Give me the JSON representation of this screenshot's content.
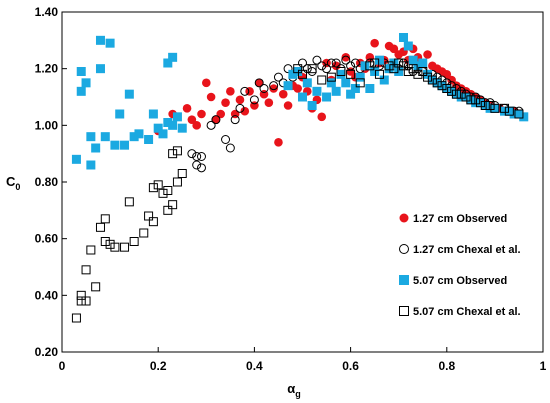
{
  "chart_data": {
    "type": "scatter",
    "xlabel_main": "α",
    "xlabel_sub": "g",
    "ylabel_main": "C",
    "ylabel_sub": "0",
    "xlim": [
      0,
      1
    ],
    "ylim": [
      0.2,
      1.4
    ],
    "xticks": [
      "0",
      "0.2",
      "0.4",
      "0.6",
      "0.8",
      "1"
    ],
    "yticks": [
      "0.20",
      "0.40",
      "0.60",
      "0.80",
      "1.00",
      "1.20",
      "1.40"
    ],
    "grid": false,
    "legend_position": "bottom-right",
    "series": [
      {
        "name": "1.27 cm Observed",
        "marker": "circle-filled",
        "color": "#e8141b",
        "points": [
          [
            0.2,
            0.98
          ],
          [
            0.23,
            1.04
          ],
          [
            0.26,
            1.06
          ],
          [
            0.27,
            1.02
          ],
          [
            0.28,
            1.0
          ],
          [
            0.29,
            1.04
          ],
          [
            0.3,
            1.15
          ],
          [
            0.31,
            1.1
          ],
          [
            0.32,
            1.02
          ],
          [
            0.33,
            1.04
          ],
          [
            0.34,
            1.08
          ],
          [
            0.35,
            1.12
          ],
          [
            0.36,
            1.04
          ],
          [
            0.37,
            1.09
          ],
          [
            0.38,
            1.05
          ],
          [
            0.39,
            1.12
          ],
          [
            0.4,
            1.07
          ],
          [
            0.41,
            1.15
          ],
          [
            0.42,
            1.11
          ],
          [
            0.43,
            1.08
          ],
          [
            0.44,
            1.13
          ],
          [
            0.45,
            0.94
          ],
          [
            0.46,
            1.11
          ],
          [
            0.47,
            1.07
          ],
          [
            0.48,
            1.14
          ],
          [
            0.49,
            1.13
          ],
          [
            0.5,
            1.17
          ],
          [
            0.51,
            1.12
          ],
          [
            0.52,
            1.06
          ],
          [
            0.53,
            1.09
          ],
          [
            0.54,
            1.03
          ],
          [
            0.55,
            1.22
          ],
          [
            0.56,
            1.16
          ],
          [
            0.57,
            1.21
          ],
          [
            0.58,
            1.18
          ],
          [
            0.59,
            1.24
          ],
          [
            0.6,
            1.19
          ],
          [
            0.61,
            1.17
          ],
          [
            0.62,
            1.22
          ],
          [
            0.63,
            1.2
          ],
          [
            0.64,
            1.24
          ],
          [
            0.65,
            1.29
          ],
          [
            0.66,
            1.22
          ],
          [
            0.67,
            1.23
          ],
          [
            0.68,
            1.28
          ],
          [
            0.69,
            1.27
          ],
          [
            0.7,
            1.25
          ],
          [
            0.71,
            1.26
          ],
          [
            0.72,
            1.23
          ],
          [
            0.73,
            1.27
          ],
          [
            0.74,
            1.24
          ],
          [
            0.75,
            1.22
          ],
          [
            0.76,
            1.25
          ],
          [
            0.77,
            1.21
          ],
          [
            0.78,
            1.2
          ],
          [
            0.79,
            1.19
          ],
          [
            0.8,
            1.18
          ],
          [
            0.81,
            1.16
          ],
          [
            0.82,
            1.14
          ],
          [
            0.83,
            1.13
          ],
          [
            0.84,
            1.12
          ],
          [
            0.85,
            1.11
          ],
          [
            0.86,
            1.1
          ],
          [
            0.87,
            1.09
          ],
          [
            0.88,
            1.08
          ],
          [
            0.89,
            1.07
          ],
          [
            0.9,
            1.06
          ],
          [
            0.91,
            1.06
          ],
          [
            0.92,
            1.05
          ],
          [
            0.94,
            1.05
          ],
          [
            0.95,
            1.04
          ]
        ]
      },
      {
        "name": "1.27 cm Chexal et al.",
        "marker": "circle-open",
        "color": "#000000",
        "points": [
          [
            0.27,
            0.9
          ],
          [
            0.28,
            0.89
          ],
          [
            0.28,
            0.86
          ],
          [
            0.29,
            0.89
          ],
          [
            0.29,
            0.85
          ],
          [
            0.31,
            1.0
          ],
          [
            0.32,
            1.02
          ],
          [
            0.34,
            0.95
          ],
          [
            0.35,
            0.92
          ],
          [
            0.36,
            1.02
          ],
          [
            0.37,
            1.06
          ],
          [
            0.38,
            1.12
          ],
          [
            0.4,
            1.09
          ],
          [
            0.41,
            1.15
          ],
          [
            0.42,
            1.13
          ],
          [
            0.44,
            1.14
          ],
          [
            0.45,
            1.17
          ],
          [
            0.46,
            1.15
          ],
          [
            0.47,
            1.2
          ],
          [
            0.48,
            1.17
          ],
          [
            0.49,
            1.19
          ],
          [
            0.5,
            1.22
          ],
          [
            0.51,
            1.2
          ],
          [
            0.52,
            1.19
          ],
          [
            0.53,
            1.23
          ],
          [
            0.54,
            1.21
          ],
          [
            0.55,
            1.2
          ],
          [
            0.56,
            1.22
          ],
          [
            0.57,
            1.22
          ],
          [
            0.58,
            1.2
          ],
          [
            0.59,
            1.23
          ],
          [
            0.6,
            1.21
          ],
          [
            0.61,
            1.22
          ],
          [
            0.62,
            1.2
          ],
          [
            0.63,
            1.21
          ],
          [
            0.64,
            1.22
          ],
          [
            0.65,
            1.19
          ],
          [
            0.66,
            1.21
          ],
          [
            0.67,
            1.22
          ],
          [
            0.68,
            1.2
          ],
          [
            0.69,
            1.21
          ],
          [
            0.7,
            1.2
          ],
          [
            0.71,
            1.22
          ],
          [
            0.72,
            1.21
          ],
          [
            0.73,
            1.19
          ],
          [
            0.74,
            1.2
          ],
          [
            0.75,
            1.19
          ],
          [
            0.76,
            1.18
          ],
          [
            0.77,
            1.18
          ],
          [
            0.78,
            1.17
          ],
          [
            0.79,
            1.16
          ],
          [
            0.8,
            1.15
          ],
          [
            0.81,
            1.14
          ],
          [
            0.82,
            1.13
          ],
          [
            0.83,
            1.12
          ],
          [
            0.84,
            1.11
          ],
          [
            0.85,
            1.1
          ],
          [
            0.86,
            1.1
          ],
          [
            0.87,
            1.09
          ],
          [
            0.88,
            1.08
          ],
          [
            0.89,
            1.08
          ],
          [
            0.9,
            1.07
          ],
          [
            0.92,
            1.06
          ],
          [
            0.94,
            1.05
          ],
          [
            0.95,
            1.05
          ]
        ]
      },
      {
        "name": "5.07 cm Observed",
        "marker": "square-filled",
        "color": "#1ba9e1",
        "points": [
          [
            0.03,
            0.88
          ],
          [
            0.04,
            1.19
          ],
          [
            0.04,
            1.12
          ],
          [
            0.05,
            1.15
          ],
          [
            0.06,
            0.86
          ],
          [
            0.06,
            0.96
          ],
          [
            0.07,
            0.92
          ],
          [
            0.08,
            1.2
          ],
          [
            0.08,
            1.3
          ],
          [
            0.09,
            0.96
          ],
          [
            0.1,
            1.29
          ],
          [
            0.11,
            0.93
          ],
          [
            0.12,
            1.04
          ],
          [
            0.13,
            0.93
          ],
          [
            0.14,
            1.11
          ],
          [
            0.15,
            0.96
          ],
          [
            0.16,
            0.97
          ],
          [
            0.18,
            0.95
          ],
          [
            0.19,
            1.04
          ],
          [
            0.2,
            0.99
          ],
          [
            0.21,
            0.97
          ],
          [
            0.22,
            1.01
          ],
          [
            0.22,
            1.22
          ],
          [
            0.23,
            1.24
          ],
          [
            0.23,
            1.0
          ],
          [
            0.24,
            1.03
          ],
          [
            0.25,
            0.99
          ],
          [
            0.47,
            1.14
          ],
          [
            0.48,
            1.18
          ],
          [
            0.49,
            1.19
          ],
          [
            0.5,
            1.1
          ],
          [
            0.51,
            1.15
          ],
          [
            0.52,
            1.07
          ],
          [
            0.53,
            1.12
          ],
          [
            0.55,
            1.1
          ],
          [
            0.56,
            1.15
          ],
          [
            0.57,
            1.12
          ],
          [
            0.58,
            1.18
          ],
          [
            0.59,
            1.15
          ],
          [
            0.6,
            1.11
          ],
          [
            0.61,
            1.13
          ],
          [
            0.62,
            1.17
          ],
          [
            0.63,
            1.21
          ],
          [
            0.64,
            1.13
          ],
          [
            0.65,
            1.19
          ],
          [
            0.66,
            1.23
          ],
          [
            0.67,
            1.16
          ],
          [
            0.68,
            1.2
          ],
          [
            0.69,
            1.22
          ],
          [
            0.7,
            1.19
          ],
          [
            0.71,
            1.31
          ],
          [
            0.72,
            1.28
          ],
          [
            0.73,
            1.23
          ],
          [
            0.74,
            1.21
          ],
          [
            0.75,
            1.22
          ],
          [
            0.76,
            1.18
          ],
          [
            0.77,
            1.16
          ],
          [
            0.78,
            1.15
          ],
          [
            0.79,
            1.14
          ],
          [
            0.8,
            1.13
          ],
          [
            0.81,
            1.12
          ],
          [
            0.82,
            1.11
          ],
          [
            0.83,
            1.1
          ],
          [
            0.84,
            1.1
          ],
          [
            0.85,
            1.09
          ],
          [
            0.86,
            1.08
          ],
          [
            0.87,
            1.08
          ],
          [
            0.88,
            1.07
          ],
          [
            0.89,
            1.06
          ],
          [
            0.9,
            1.06
          ],
          [
            0.92,
            1.05
          ],
          [
            0.93,
            1.05
          ],
          [
            0.94,
            1.04
          ],
          [
            0.95,
            1.04
          ],
          [
            0.96,
            1.03
          ]
        ]
      },
      {
        "name": "5.07 cm Chexal et al.",
        "marker": "square-open",
        "color": "#000000",
        "points": [
          [
            0.03,
            0.32
          ],
          [
            0.04,
            0.4
          ],
          [
            0.04,
            0.38
          ],
          [
            0.05,
            0.38
          ],
          [
            0.05,
            0.49
          ],
          [
            0.06,
            0.56
          ],
          [
            0.07,
            0.43
          ],
          [
            0.08,
            0.64
          ],
          [
            0.09,
            0.67
          ],
          [
            0.09,
            0.59
          ],
          [
            0.1,
            0.58
          ],
          [
            0.11,
            0.57
          ],
          [
            0.13,
            0.57
          ],
          [
            0.14,
            0.73
          ],
          [
            0.15,
            0.59
          ],
          [
            0.17,
            0.62
          ],
          [
            0.18,
            0.68
          ],
          [
            0.19,
            0.66
          ],
          [
            0.19,
            0.78
          ],
          [
            0.2,
            0.79
          ],
          [
            0.21,
            0.76
          ],
          [
            0.22,
            0.7
          ],
          [
            0.22,
            0.77
          ],
          [
            0.23,
            0.9
          ],
          [
            0.23,
            0.72
          ],
          [
            0.24,
            0.8
          ],
          [
            0.24,
            0.91
          ],
          [
            0.25,
            0.83
          ],
          [
            0.49,
            1.2
          ],
          [
            0.5,
            1.18
          ],
          [
            0.52,
            1.2
          ],
          [
            0.54,
            1.16
          ],
          [
            0.56,
            1.17
          ],
          [
            0.58,
            1.19
          ],
          [
            0.6,
            1.18
          ],
          [
            0.62,
            1.15
          ],
          [
            0.64,
            1.21
          ],
          [
            0.65,
            1.22
          ],
          [
            0.66,
            1.18
          ],
          [
            0.68,
            1.21
          ],
          [
            0.69,
            1.2
          ],
          [
            0.7,
            1.22
          ],
          [
            0.71,
            1.21
          ],
          [
            0.72,
            1.19
          ],
          [
            0.73,
            1.2
          ],
          [
            0.74,
            1.18
          ],
          [
            0.75,
            1.19
          ],
          [
            0.76,
            1.17
          ],
          [
            0.77,
            1.16
          ],
          [
            0.78,
            1.15
          ],
          [
            0.79,
            1.14
          ],
          [
            0.8,
            1.13
          ],
          [
            0.81,
            1.12
          ],
          [
            0.82,
            1.11
          ],
          [
            0.83,
            1.11
          ],
          [
            0.84,
            1.1
          ],
          [
            0.85,
            1.09
          ],
          [
            0.86,
            1.09
          ],
          [
            0.87,
            1.08
          ],
          [
            0.88,
            1.07
          ],
          [
            0.89,
            1.07
          ],
          [
            0.9,
            1.06
          ],
          [
            0.92,
            1.06
          ],
          [
            0.93,
            1.05
          ],
          [
            0.95,
            1.04
          ]
        ]
      }
    ]
  }
}
